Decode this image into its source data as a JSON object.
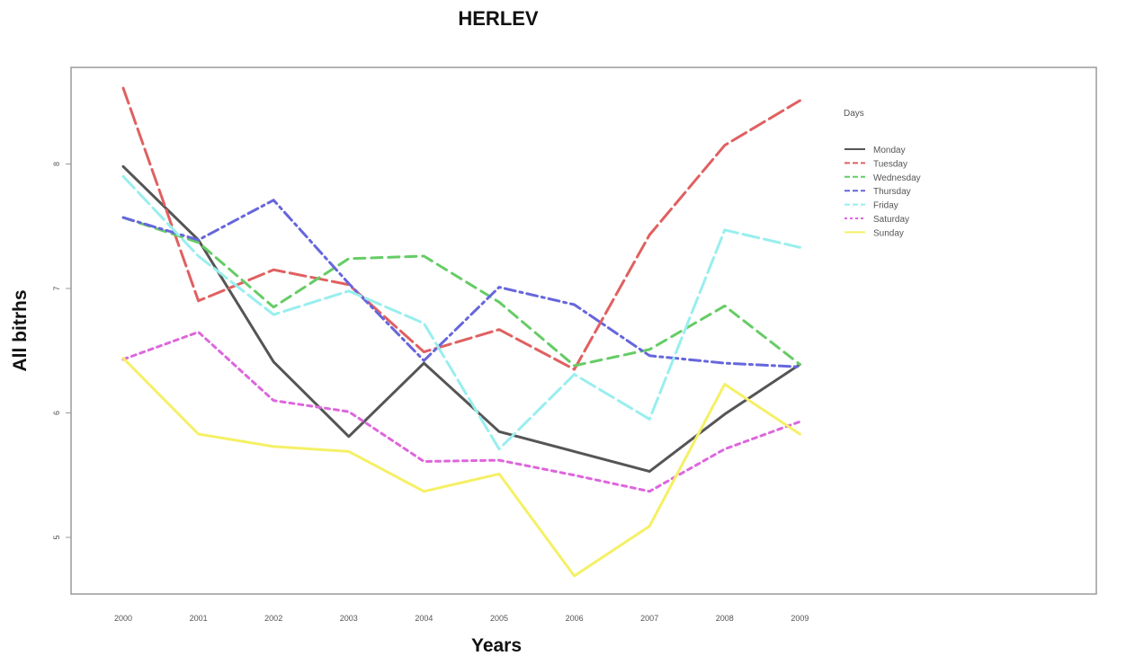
{
  "chart_data": {
    "type": "line",
    "title": "HERLEV",
    "xlabel": "Years",
    "ylabel": "All bitrhs",
    "x": [
      "2000",
      "2001",
      "2002",
      "2003",
      "2004",
      "2005",
      "2006",
      "2007",
      "2008",
      "2009"
    ],
    "yticks": [
      "5",
      "6",
      "7",
      "8"
    ],
    "ylim": [
      4.55,
      8.9
    ],
    "grid": false,
    "legend_title": "Days",
    "legend_position": "top-right",
    "series": [
      {
        "name": "Monday",
        "color": "#555555",
        "dash": "solid",
        "values": [
          7.98,
          7.39,
          6.41,
          5.81,
          6.4,
          5.85,
          5.69,
          5.53,
          5.99,
          6.39
        ]
      },
      {
        "name": "Tuesday",
        "color": "#e06060",
        "dash": "longdash",
        "values": [
          8.61,
          6.9,
          7.15,
          7.03,
          6.49,
          6.67,
          6.35,
          7.43,
          8.15,
          8.51
        ]
      },
      {
        "name": "Wednesday",
        "color": "#66cc66",
        "dash": "dash",
        "values": [
          7.57,
          7.37,
          6.85,
          7.24,
          7.26,
          6.89,
          6.38,
          6.51,
          6.86,
          6.39
        ]
      },
      {
        "name": "Thursday",
        "color": "#6666dd",
        "dash": "dashdot",
        "values": [
          7.57,
          7.39,
          7.71,
          7.04,
          6.42,
          7.01,
          6.87,
          6.46,
          6.4,
          6.37
        ]
      },
      {
        "name": "Friday",
        "color": "#99eeee",
        "dash": "longdash",
        "values": [
          7.9,
          7.26,
          6.79,
          6.98,
          6.72,
          5.71,
          6.31,
          5.95,
          7.47,
          7.33
        ]
      },
      {
        "name": "Saturday",
        "color": "#dd66dd",
        "dash": "dotted",
        "values": [
          6.43,
          6.65,
          6.1,
          6.01,
          5.61,
          5.62,
          5.5,
          5.37,
          5.71,
          5.93
        ]
      },
      {
        "name": "Sunday",
        "color": "#f5f066",
        "dash": "solid",
        "values": [
          6.44,
          5.83,
          5.73,
          5.69,
          5.37,
          5.51,
          4.69,
          5.09,
          6.23,
          5.83
        ]
      }
    ]
  }
}
